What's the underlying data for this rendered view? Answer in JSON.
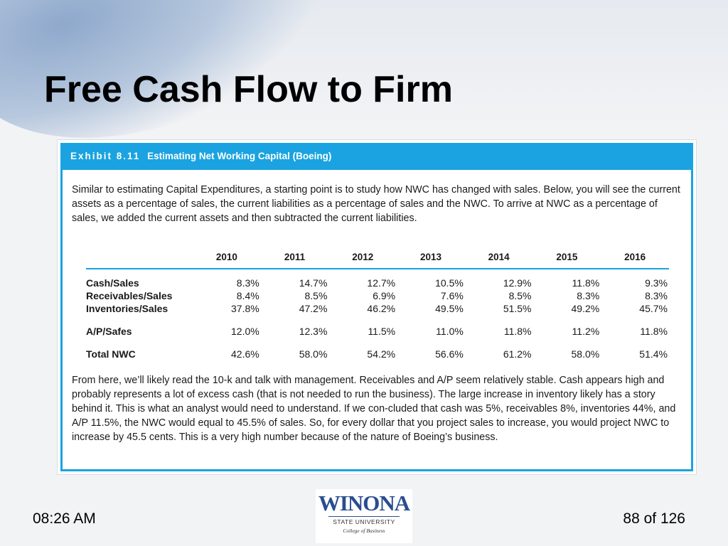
{
  "slide": {
    "title": "Free Cash Flow to Firm"
  },
  "exhibit": {
    "number": "Exhibit 8.11",
    "title": "Estimating Net Working Capital (Boeing)",
    "intro": "Similar to estimating Capital Expenditures, a starting point is to study how NWC has changed with sales. Below, you will see the current assets as a percentage of sales, the current liabilities as a percentage of sales and the NWC. To arrive at NWC as a percentage of sales, we added the current assets and then subtracted the current liabilities.",
    "years": [
      "2010",
      "2011",
      "2012",
      "2013",
      "2014",
      "2015",
      "2016"
    ],
    "rows": [
      {
        "label": "Cash/Sales",
        "values": [
          "8.3%",
          "14.7%",
          "12.7%",
          "10.5%",
          "12.9%",
          "11.8%",
          "9.3%"
        ]
      },
      {
        "label": "Receivables/Sales",
        "values": [
          "8.4%",
          "8.5%",
          "6.9%",
          "7.6%",
          "8.5%",
          "8.3%",
          "8.3%"
        ]
      },
      {
        "label": "Inventories/Sales",
        "values": [
          "37.8%",
          "47.2%",
          "46.2%",
          "49.5%",
          "51.5%",
          "49.2%",
          "45.7%"
        ]
      },
      {
        "label": "A/P/Safes",
        "values": [
          "12.0%",
          "12.3%",
          "11.5%",
          "11.0%",
          "11.8%",
          "11.2%",
          "11.8%"
        ]
      },
      {
        "label": "Total NWC",
        "values": [
          "42.6%",
          "58.0%",
          "54.2%",
          "56.6%",
          "61.2%",
          "58.0%",
          "51.4%"
        ]
      }
    ],
    "conclusion": "From here, we’ll likely read the 10-k and talk with management. Receivables and A/P seem relatively stable. Cash appears high and probably represents a lot of excess cash (that is not needed to run the business). The large increase in inventory likely has a story behind it. This is what an analyst would need to understand. If we con-cluded that cash was 5%, receivables 8%, inventories 44%, and A/P 11.5%, the NWC would equal to 45.5% of sales. So, for every dollar that you project sales to increase, you would project NWC to increase by 45.5 cents. This is a very high number because of the nature of Boeing’s business."
  },
  "footer": {
    "time": "08:26 AM",
    "page": "88 of 126"
  },
  "logo": {
    "name": "WINONA",
    "subtitle": "STATE UNIVERSITY",
    "college": "College of Business"
  },
  "colors": {
    "exhibit_accent": "#1aa3e0",
    "logo_blue": "#2a4d8f"
  }
}
